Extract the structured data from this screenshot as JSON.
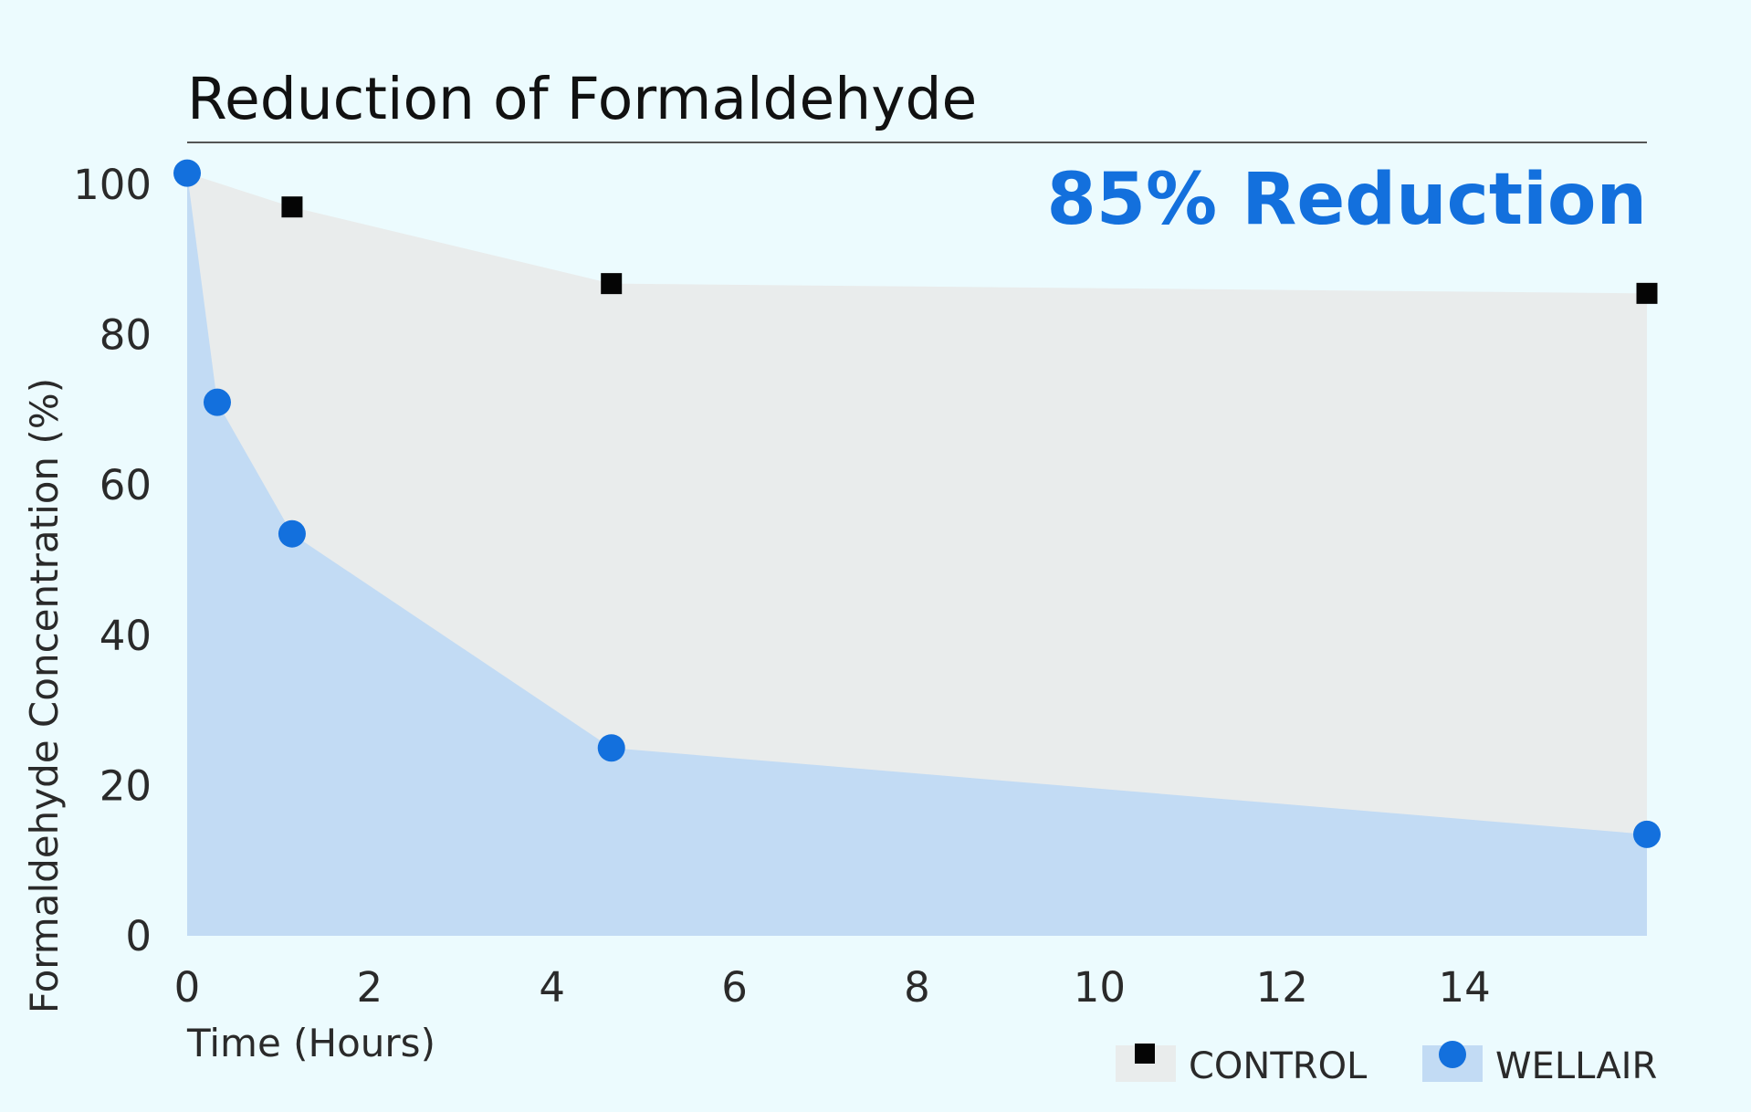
{
  "colors": {
    "background": "#ecfbfe",
    "control_fill": "#e9ecec",
    "wellair_fill": "#c2dbf4",
    "wellair_marker": "#1370dd",
    "control_marker": "#050505",
    "headline": "#1370dd",
    "rule": "#555555"
  },
  "chart_data": {
    "type": "area",
    "title": "Reduction of Formaldehyde",
    "headline": "85% Reduction",
    "xlabel": "Time (Hours)",
    "ylabel": "Formaldehyde Concentration (%)",
    "xlim": [
      0,
      16
    ],
    "ylim": [
      0,
      100
    ],
    "x_ticks": [
      "0",
      "2",
      "4",
      "6",
      "8",
      "10",
      "12",
      "14"
    ],
    "y_ticks": [
      "0",
      "20",
      "40",
      "60",
      "80",
      "100"
    ],
    "x_tick_values": [
      0,
      2,
      4,
      6,
      8,
      10,
      12,
      14
    ],
    "y_tick_values": [
      0,
      20,
      40,
      60,
      80,
      100
    ],
    "legend_position": "bottom-right",
    "series": [
      {
        "name": "CONTROL",
        "marker": "square",
        "x": [
          0,
          1.15,
          4.65,
          16
        ],
        "y": [
          101.5,
          97,
          86.8,
          85.5
        ]
      },
      {
        "name": "WELLAIR",
        "marker": "circle",
        "x": [
          0,
          0.33,
          1.15,
          4.65,
          16
        ],
        "y": [
          101.5,
          71,
          53.5,
          25,
          13.5
        ]
      }
    ]
  }
}
